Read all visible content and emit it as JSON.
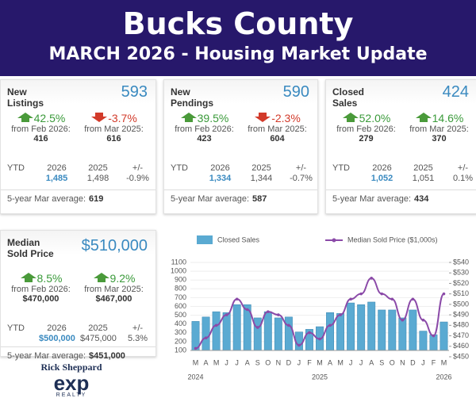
{
  "header": {
    "title": "Bucks County",
    "subtitle": "MARCH 2026 - Housing Market Update"
  },
  "cards": [
    {
      "title": "New Listings",
      "value": "593",
      "changes": [
        {
          "pct": "42.5%",
          "from": "from Feb 2026:",
          "value": "416"
        },
        {
          "pct": "-3.7%",
          "from": "from Mar 2025:",
          "value": "616"
        }
      ],
      "ytd": {
        "label": "YTD",
        "cols": [
          {
            "head": "2026",
            "value": "1,485"
          },
          {
            "head": "2025",
            "value": "1,498"
          },
          {
            "head": "+/-",
            "value": "-0.9%"
          }
        ]
      },
      "average": {
        "label": "5-year Mar average:",
        "value": "619"
      }
    },
    {
      "title": "New Pendings",
      "value": "590",
      "changes": [
        {
          "pct": "39.5%",
          "from": "from Feb 2026:",
          "value": "423"
        },
        {
          "pct": "-2.3%",
          "from": "from Mar 2025:",
          "value": "604"
        }
      ],
      "ytd": {
        "label": "YTD",
        "cols": [
          {
            "head": "2026",
            "value": "1,334"
          },
          {
            "head": "2025",
            "value": "1,344"
          },
          {
            "head": "+/-",
            "value": "-0.7%"
          }
        ]
      },
      "average": {
        "label": "5-year Mar average:",
        "value": "587"
      }
    },
    {
      "title": "Closed Sales",
      "value": "424",
      "changes": [
        {
          "pct": "52.0%",
          "from": "from Feb 2026:",
          "value": "279"
        },
        {
          "pct": "14.6%",
          "from": "from Mar 2025:",
          "value": "370"
        }
      ],
      "ytd": {
        "label": "YTD",
        "cols": [
          {
            "head": "2026",
            "value": "1,052"
          },
          {
            "head": "2025",
            "value": "1,051"
          },
          {
            "head": "+/-",
            "value": "0.1%"
          }
        ]
      },
      "average": {
        "label": "5-year Mar average:",
        "value": "434"
      }
    },
    {
      "title": "Median Sold Price",
      "value": "$510,000",
      "changes": [
        {
          "pct": "8.5%",
          "from": "from Feb 2026:",
          "value": "$470,000"
        },
        {
          "pct": "9.2%",
          "from": "from Mar 2025:",
          "value": "$467,000"
        }
      ],
      "ytd": {
        "label": "YTD",
        "cols": [
          {
            "head": "2026",
            "value": "$500,000"
          },
          {
            "head": "2025",
            "value": "$475,000"
          },
          {
            "head": "+/-",
            "value": "5.3%"
          }
        ]
      },
      "average": {
        "label": "5-year Mar average:",
        "value": "$451,000"
      }
    }
  ],
  "chart_data": {
    "type": "bar-line",
    "categories": [
      "M",
      "A",
      "M",
      "J",
      "J",
      "A",
      "S",
      "O",
      "N",
      "D",
      "J",
      "F",
      "M",
      "A",
      "M",
      "J",
      "J",
      "A",
      "S",
      "O",
      "N",
      "D",
      "J",
      "F",
      "M"
    ],
    "years": [
      {
        "index": 0,
        "label": "2024"
      },
      {
        "index": 12,
        "label": "2025"
      },
      {
        "index": 24,
        "label": "2026"
      }
    ],
    "series": [
      {
        "name": "Closed Sales",
        "color": "#5aaad2",
        "type": "bar",
        "values": [
          430,
          480,
          540,
          530,
          620,
          620,
          470,
          540,
          470,
          480,
          310,
          340,
          370,
          530,
          520,
          640,
          620,
          650,
          560,
          560,
          470,
          560,
          320,
          279,
          424
        ]
      },
      {
        "name": "Median Sold Price ($1,000s)",
        "color": "#8b4aa8",
        "type": "line",
        "axis": "y2",
        "values": [
          458,
          468,
          480,
          490,
          505,
          495,
          478,
          493,
          490,
          480,
          461,
          473,
          467,
          480,
          490,
          505,
          510,
          525,
          510,
          505,
          485,
          505,
          485,
          470,
          510
        ]
      }
    ],
    "ylim": [
      100,
      1100
    ],
    "yticks": [
      100,
      200,
      300,
      400,
      500,
      600,
      700,
      800,
      900,
      1000,
      1100
    ],
    "y2lim": [
      450,
      540
    ],
    "y2ticks": [
      {
        "value": 450,
        "label": "$450"
      },
      {
        "value": 460,
        "label": "$460"
      },
      {
        "value": 470,
        "label": "$470"
      },
      {
        "value": 480,
        "label": "$480"
      },
      {
        "value": 490,
        "label": "$490"
      },
      {
        "value": 500,
        "label": "$500"
      },
      {
        "value": 510,
        "label": "$510"
      },
      {
        "value": 520,
        "label": "$520"
      },
      {
        "value": 530,
        "label": "$530"
      },
      {
        "value": 540,
        "label": "$540"
      }
    ],
    "grid": true
  },
  "logo": {
    "name": "Rick Sheppard",
    "brand": "exp",
    "sub": "REALTY"
  }
}
